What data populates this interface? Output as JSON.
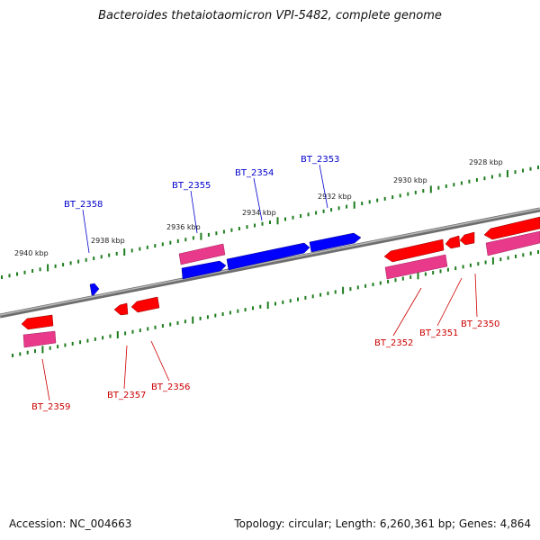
{
  "title": "Bacteroides thetaiotaomicron VPI-5482, complete genome",
  "footer": {
    "accession": "Accession: NC_004663",
    "topology": "Topology: circular; Length: 6,260,361 bp; Genes: 4,864"
  },
  "colors": {
    "backbone": "#808080",
    "tick": "#1e7d1e",
    "forward_gene": "#0000ff",
    "reverse_gene": "#ff0000",
    "reverse_gene_alt": "#e8398a",
    "forward_label": "#0000cc",
    "reverse_label": "#cc0000"
  },
  "scale_labels": [
    {
      "text": "2928 kbp"
    },
    {
      "text": "2930 kbp"
    },
    {
      "text": "2932 kbp"
    },
    {
      "text": "2934 kbp"
    },
    {
      "text": "2936 kbp"
    },
    {
      "text": "2938 kbp"
    },
    {
      "text": "2940 kbp"
    }
  ],
  "forward_genes": [
    {
      "label": "BT_2353",
      "color": "#0000ff"
    },
    {
      "label": "BT_2354",
      "color": "#0000ff"
    },
    {
      "label": "BT_2355",
      "color": "#0000ff"
    },
    {
      "label": "BT_2358",
      "color": "#0000ff"
    }
  ],
  "reverse_genes": [
    {
      "label": "BT_2350",
      "color": "#ff0000"
    },
    {
      "label": "BT_2351",
      "color": "#ff0000"
    },
    {
      "label": "BT_2352",
      "color": "#ff0000"
    },
    {
      "label": "BT_2356",
      "color": "#ff0000"
    },
    {
      "label": "BT_2357",
      "color": "#ff0000"
    },
    {
      "label": "BT_2359",
      "color": "#ff0000"
    }
  ]
}
